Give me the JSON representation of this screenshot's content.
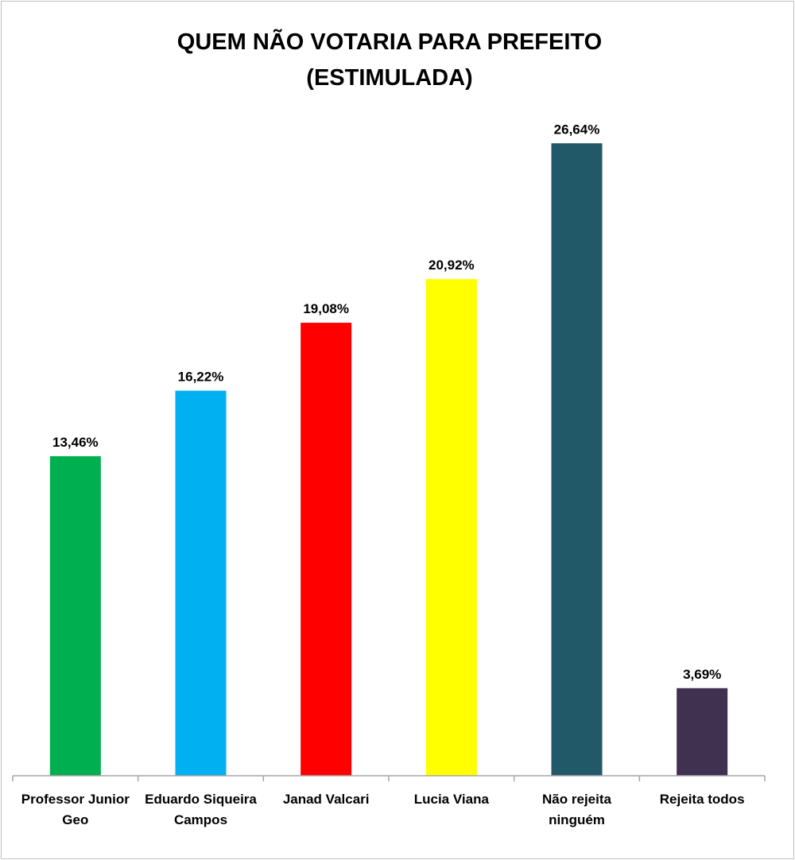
{
  "chart_data": {
    "type": "bar",
    "title_lines": [
      "QUEM NÃO VOTARIA PARA PREFEITO",
      "(ESTIMULADA)"
    ],
    "xlabel": "",
    "ylabel": "",
    "ylim": [
      0,
      30
    ],
    "grid": false,
    "legend": "none",
    "categories": [
      [
        "Professor Junior",
        "Geo"
      ],
      [
        "Eduardo Siqueira",
        "Campos"
      ],
      [
        "Janad Valcari"
      ],
      [
        "Lucia Viana"
      ],
      [
        "Não rejeita",
        "ninguém"
      ],
      [
        "Rejeita todos"
      ]
    ],
    "values": [
      13.46,
      16.22,
      19.08,
      20.92,
      26.64,
      3.69
    ],
    "value_labels": [
      "13,46%",
      "16,22%",
      "19,08%",
      "20,92%",
      "26,64%",
      "3,69%"
    ],
    "colors": [
      "#00b050",
      "#00b0f0",
      "#ff0000",
      "#ffff00",
      "#215968",
      "#403151"
    ]
  }
}
